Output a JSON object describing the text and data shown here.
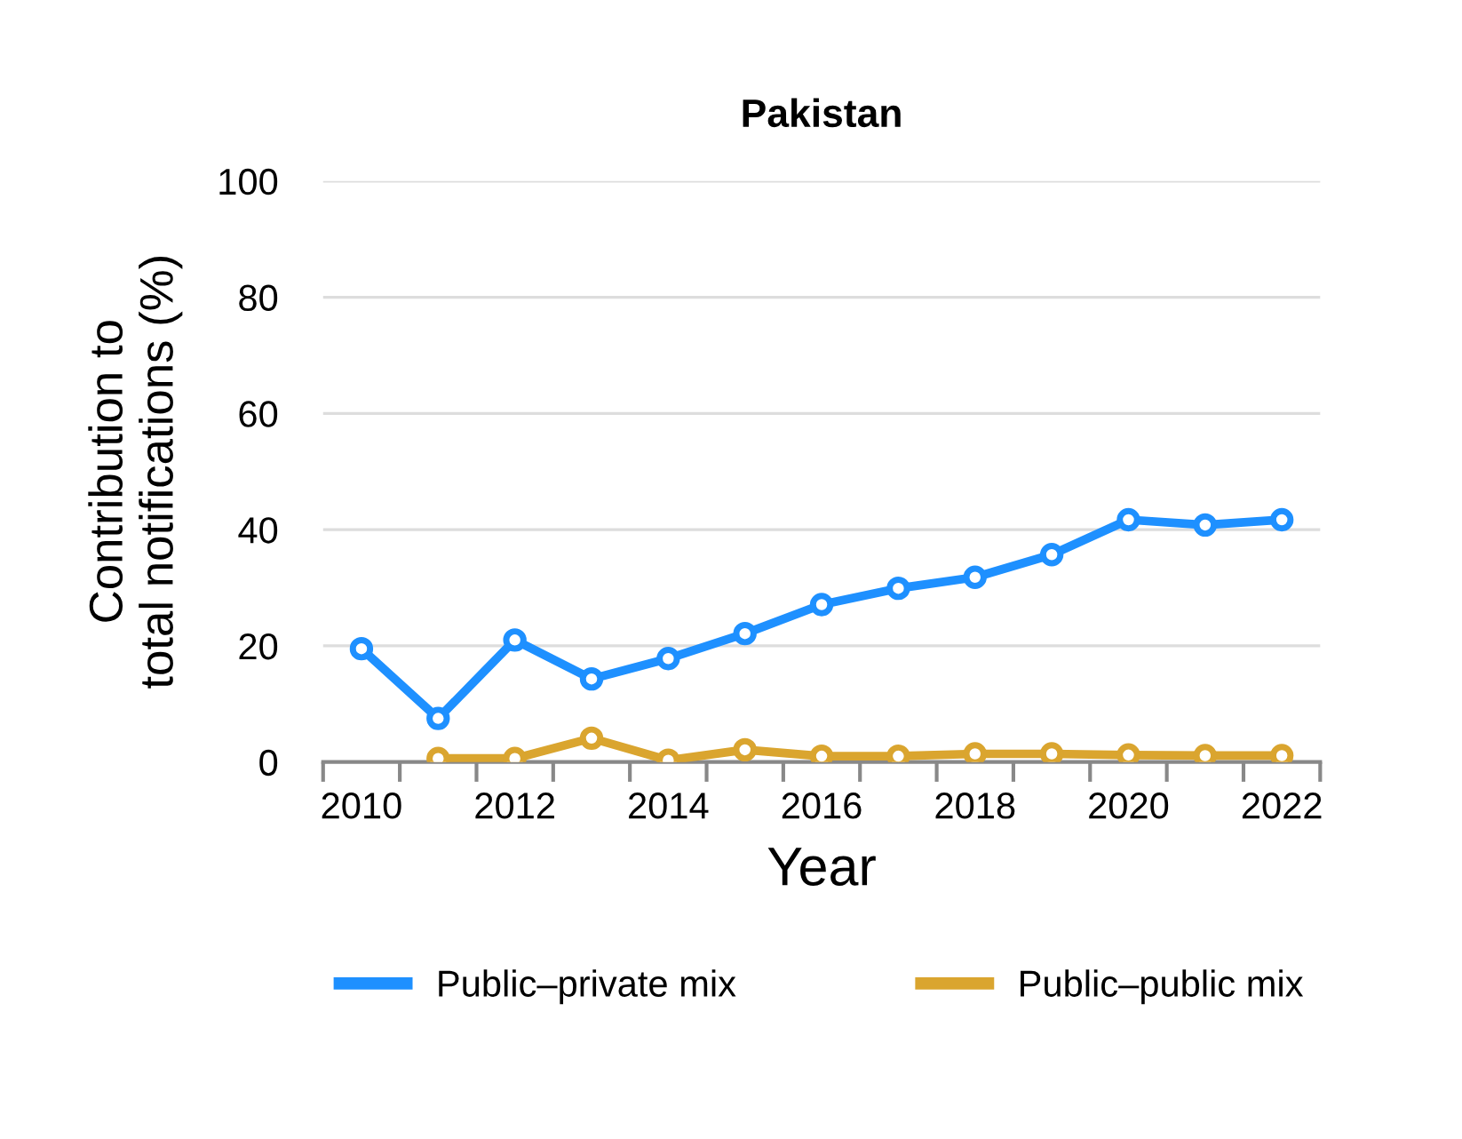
{
  "chart_data": {
    "type": "line",
    "title": "Pakistan",
    "xlabel": "Year",
    "ylabel": "Contribution to\ntotal notifications (%)",
    "x": [
      2010,
      2011,
      2012,
      2013,
      2014,
      2015,
      2016,
      2017,
      2018,
      2019,
      2020,
      2021,
      2022
    ],
    "series": [
      {
        "name": "Public–private mix",
        "color": "#1e90ff",
        "values": [
          19.5,
          7.5,
          21.0,
          14.3,
          17.8,
          22.1,
          27.1,
          29.9,
          31.8,
          35.7,
          41.7,
          40.8,
          41.7
        ]
      },
      {
        "name": "Public–public mix",
        "color": "#daa52f",
        "values": [
          null,
          0.6,
          0.6,
          4.1,
          0.3,
          2.1,
          1.0,
          1.0,
          1.4,
          1.4,
          1.2,
          1.1,
          1.1
        ]
      }
    ],
    "xlim": [
      2009.5,
      2022.5
    ],
    "xticks": [
      2010,
      2012,
      2014,
      2016,
      2018,
      2020,
      2022,
      {
        "value": 2009.5,
        "label": null
      },
      {
        "value": 2010.5,
        "label": null
      },
      {
        "value": 2011.5,
        "label": null
      },
      {
        "value": 2012.5,
        "label": null
      },
      {
        "value": 2013.5,
        "label": null
      },
      {
        "value": 2014.5,
        "label": null
      },
      {
        "value": 2015.5,
        "label": null
      },
      {
        "value": 2016.5,
        "label": null
      },
      {
        "value": 2017.5,
        "label": null
      },
      {
        "value": 2018.5,
        "label": null
      },
      {
        "value": 2019.5,
        "label": null
      },
      {
        "value": 2020.5,
        "label": null
      },
      {
        "value": 2021.5,
        "label": null
      },
      {
        "value": 2022.5,
        "label": null
      }
    ],
    "ylim": [
      0,
      100
    ],
    "yticks": [
      0,
      20,
      40,
      60,
      80,
      100
    ],
    "grid": "y",
    "legend": "bottom",
    "marker": "circle",
    "line_style": "solid"
  }
}
